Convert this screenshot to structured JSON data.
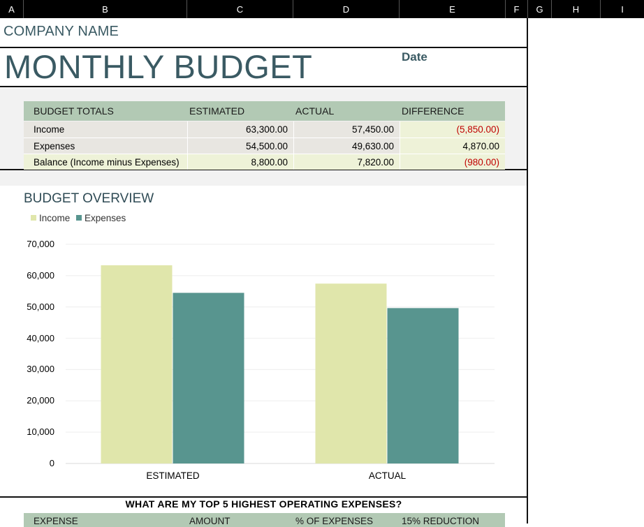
{
  "columns": [
    "A",
    "B",
    "C",
    "D",
    "E",
    "F",
    "G",
    "H",
    "I"
  ],
  "company_name": "COMPANY NAME",
  "title": "MONTHLY BUDGET",
  "date_label": "Date",
  "totals": {
    "headers": [
      "BUDGET TOTALS",
      "ESTIMATED",
      "ACTUAL",
      "DIFFERENCE"
    ],
    "rows": [
      {
        "label": "Income",
        "estimated": "63,300.00",
        "actual": "57,450.00",
        "difference": "(5,850.00)",
        "negative": true
      },
      {
        "label": "Expenses",
        "estimated": "54,500.00",
        "actual": "49,630.00",
        "difference": "4,870.00",
        "negative": false
      },
      {
        "label": "Balance (Income minus Expenses)",
        "estimated": "8,800.00",
        "actual": "7,820.00",
        "difference": "(980.00)",
        "negative": true
      }
    ]
  },
  "colors": {
    "header_bg": "#b2c9b4",
    "income_bar": "#e0e6ab",
    "expenses_bar": "#58958f",
    "title_color": "#3a5a63",
    "negative": "#c00000"
  },
  "chart_data": {
    "type": "bar",
    "title": "BUDGET OVERVIEW",
    "categories": [
      "ESTIMATED",
      "ACTUAL"
    ],
    "series": [
      {
        "name": "Income",
        "values": [
          63300,
          57450
        ]
      },
      {
        "name": "Expenses",
        "values": [
          54500,
          49630
        ]
      }
    ],
    "ylim": [
      0,
      70000
    ],
    "yticks": [
      "0",
      "10,000",
      "20,000",
      "30,000",
      "40,000",
      "50,000",
      "60,000",
      "70,000"
    ],
    "legend": "top-left",
    "grid": true
  },
  "top5": {
    "title": "WHAT ARE MY TOP 5 HIGHEST OPERATING EXPENSES?",
    "headers": [
      "EXPENSE",
      "AMOUNT",
      "% OF EXPENSES",
      "15% REDUCTION"
    ]
  }
}
